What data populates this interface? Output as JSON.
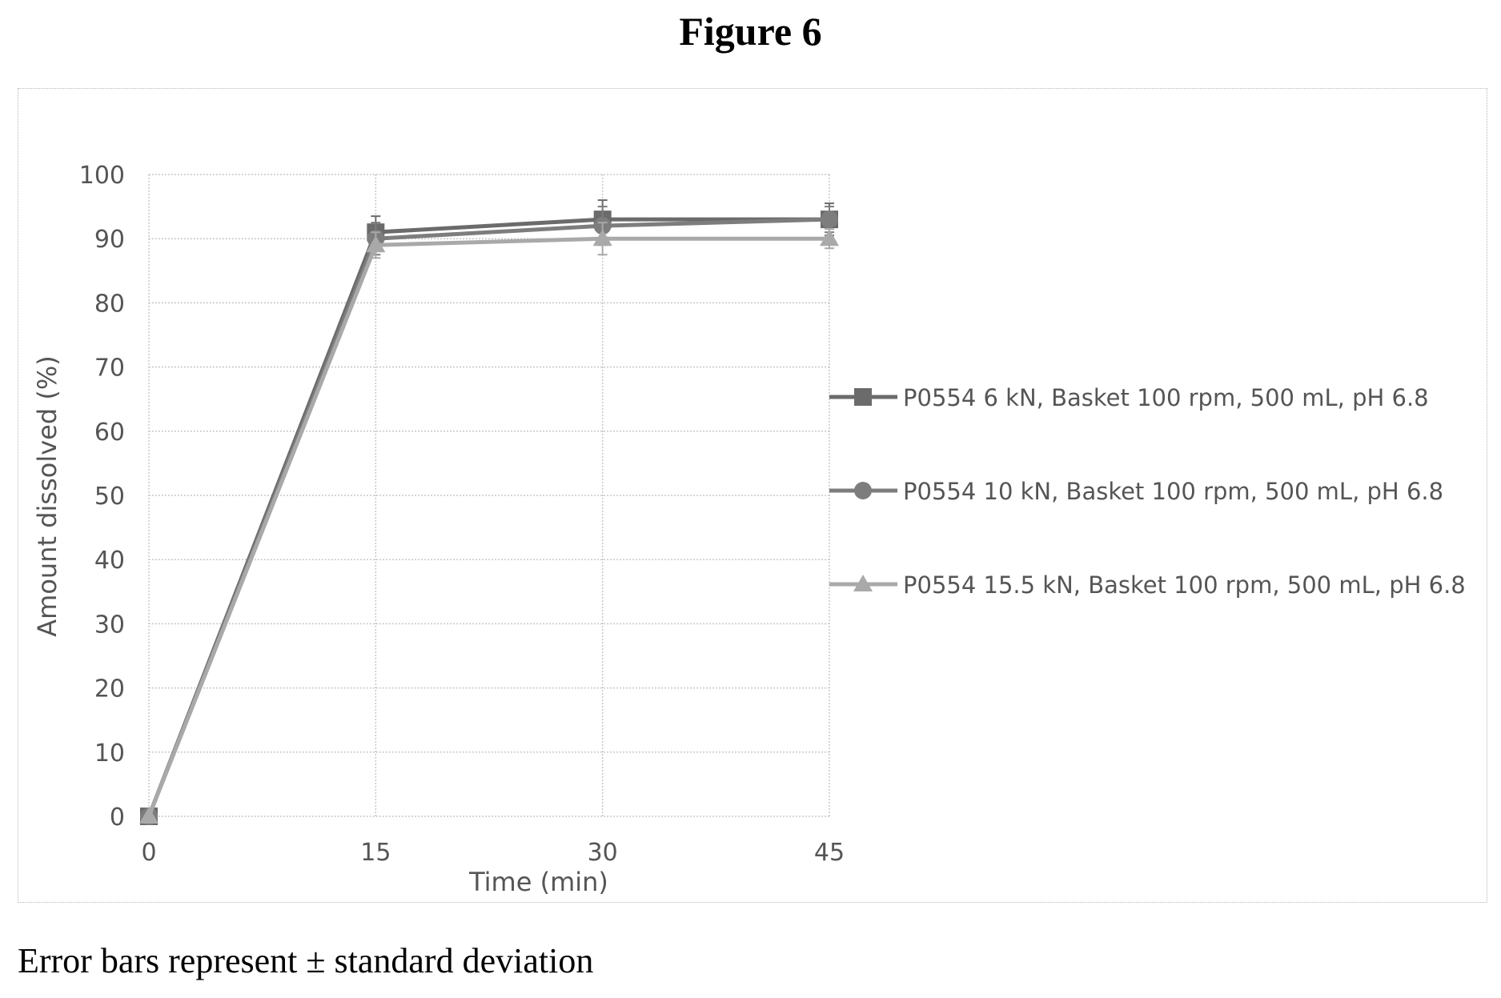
{
  "figure": {
    "title": "Figure 6",
    "footnote": "Error bars represent ± standard deviation"
  },
  "chart_data": {
    "type": "line",
    "title": "",
    "xlabel": "Time (min)",
    "ylabel": "Amount dissolved (%)",
    "x": [
      0,
      15,
      30,
      45
    ],
    "x_ticks": [
      0,
      15,
      30,
      45
    ],
    "y_ticks": [
      0,
      10,
      20,
      30,
      40,
      50,
      60,
      70,
      80,
      90,
      100
    ],
    "xlim": [
      0,
      45
    ],
    "ylim": [
      0,
      100
    ],
    "grid": true,
    "legend_position": "right",
    "series": [
      {
        "name": "P0554 6 kN, Basket 100 rpm, 500 mL, pH 6.8",
        "marker": "square",
        "color": "#6b6b6b",
        "values": [
          0,
          91,
          93,
          93
        ],
        "errors": [
          0,
          2.5,
          3,
          2.5
        ]
      },
      {
        "name": "P0554 10 kN, Basket 100 rpm, 500 mL, pH 6.8",
        "marker": "circle",
        "color": "#7d7d7d",
        "values": [
          0,
          90,
          92,
          93
        ],
        "errors": [
          0,
          2.5,
          3,
          2
        ]
      },
      {
        "name": "P0554 15.5 kN, Basket 100 rpm, 500 mL, pH 6.8",
        "marker": "triangle",
        "color": "#a9a9a9",
        "values": [
          0,
          89,
          90,
          90
        ],
        "errors": [
          0,
          2,
          2.5,
          1.5
        ]
      }
    ]
  }
}
